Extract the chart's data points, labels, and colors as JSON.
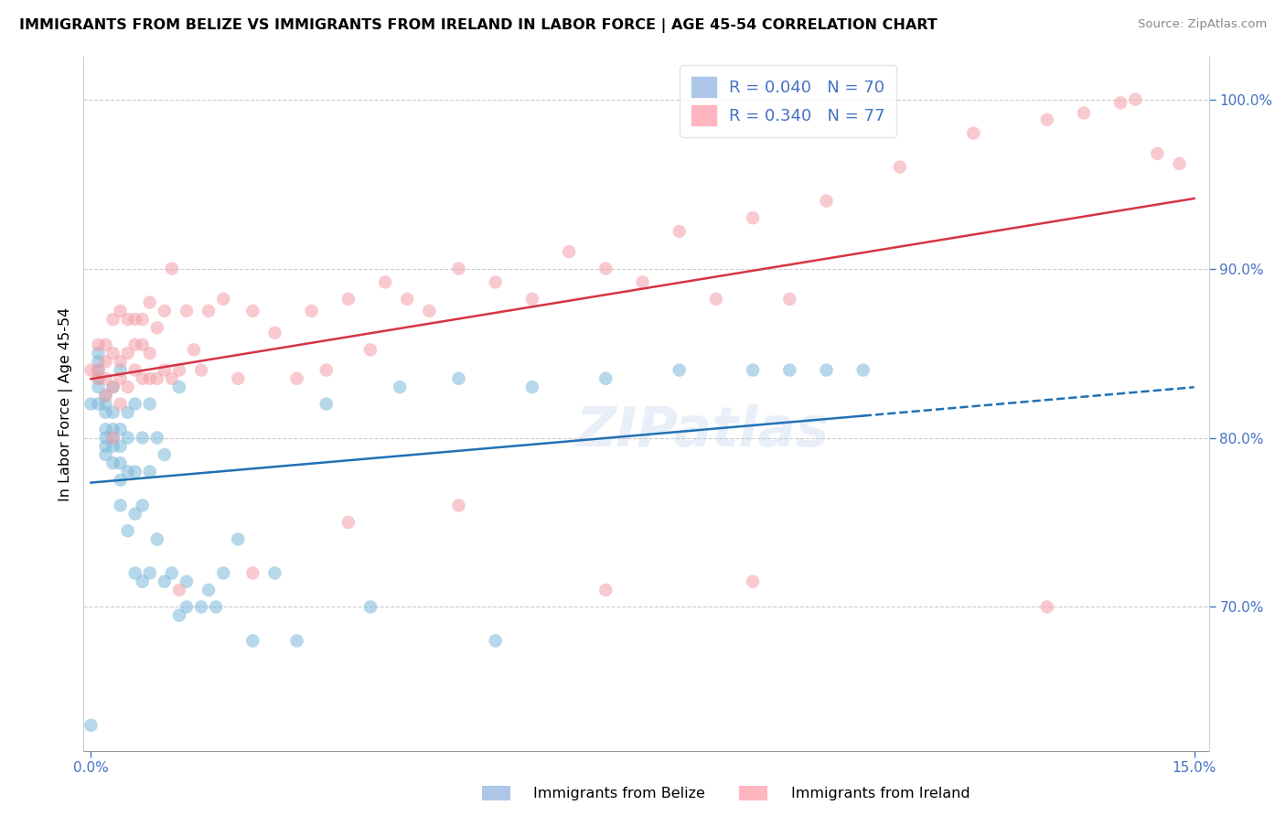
{
  "title": "IMMIGRANTS FROM BELIZE VS IMMIGRANTS FROM IRELAND IN LABOR FORCE | AGE 45-54 CORRELATION CHART",
  "source": "Source: ZipAtlas.com",
  "ylabel": "In Labor Force | Age 45-54",
  "legend_belize_r": "R = 0.040",
  "legend_belize_n": "N = 70",
  "legend_ireland_r": "R = 0.340",
  "legend_ireland_n": "N = 77",
  "belize_color": "#7ab8d9",
  "ireland_color": "#f4a0a8",
  "belize_line_color": "#2171b5",
  "ireland_line_color": "#d63444",
  "watermark": "ZIPatlas",
  "bottom_label_belize": "Immigrants from Belize",
  "bottom_label_ireland": "Immigrants from Ireland",
  "xlim_min": -0.001,
  "xlim_max": 0.152,
  "ylim_min": 0.615,
  "ylim_max": 1.025,
  "belize_x": [
    0.0,
    0.0,
    0.001,
    0.001,
    0.001,
    0.001,
    0.001,
    0.001,
    0.002,
    0.002,
    0.002,
    0.002,
    0.002,
    0.002,
    0.002,
    0.003,
    0.003,
    0.003,
    0.003,
    0.003,
    0.003,
    0.004,
    0.004,
    0.004,
    0.004,
    0.004,
    0.004,
    0.005,
    0.005,
    0.005,
    0.005,
    0.006,
    0.006,
    0.006,
    0.006,
    0.007,
    0.007,
    0.007,
    0.008,
    0.008,
    0.008,
    0.009,
    0.009,
    0.01,
    0.01,
    0.011,
    0.012,
    0.012,
    0.013,
    0.013,
    0.015,
    0.016,
    0.017,
    0.018,
    0.02,
    0.022,
    0.025,
    0.028,
    0.032,
    0.038,
    0.042,
    0.05,
    0.055,
    0.06,
    0.07,
    0.08,
    0.09,
    0.095,
    0.1,
    0.105
  ],
  "belize_y": [
    0.63,
    0.82,
    0.82,
    0.83,
    0.835,
    0.84,
    0.845,
    0.85,
    0.79,
    0.795,
    0.8,
    0.805,
    0.815,
    0.82,
    0.825,
    0.785,
    0.795,
    0.8,
    0.805,
    0.815,
    0.83,
    0.76,
    0.775,
    0.785,
    0.795,
    0.805,
    0.84,
    0.745,
    0.78,
    0.8,
    0.815,
    0.72,
    0.755,
    0.78,
    0.82,
    0.715,
    0.76,
    0.8,
    0.72,
    0.78,
    0.82,
    0.74,
    0.8,
    0.715,
    0.79,
    0.72,
    0.695,
    0.83,
    0.7,
    0.715,
    0.7,
    0.71,
    0.7,
    0.72,
    0.74,
    0.68,
    0.72,
    0.68,
    0.82,
    0.7,
    0.83,
    0.835,
    0.68,
    0.83,
    0.835,
    0.84,
    0.84,
    0.84,
    0.84,
    0.84
  ],
  "ireland_x": [
    0.0,
    0.001,
    0.001,
    0.001,
    0.002,
    0.002,
    0.002,
    0.002,
    0.003,
    0.003,
    0.003,
    0.003,
    0.004,
    0.004,
    0.004,
    0.004,
    0.005,
    0.005,
    0.005,
    0.006,
    0.006,
    0.006,
    0.007,
    0.007,
    0.007,
    0.008,
    0.008,
    0.008,
    0.009,
    0.009,
    0.01,
    0.01,
    0.011,
    0.011,
    0.012,
    0.013,
    0.014,
    0.015,
    0.016,
    0.018,
    0.02,
    0.022,
    0.025,
    0.028,
    0.03,
    0.032,
    0.035,
    0.038,
    0.04,
    0.043,
    0.046,
    0.05,
    0.055,
    0.06,
    0.065,
    0.07,
    0.075,
    0.08,
    0.085,
    0.09,
    0.095,
    0.1,
    0.11,
    0.12,
    0.13,
    0.135,
    0.14,
    0.142,
    0.145,
    0.148,
    0.13,
    0.09,
    0.07,
    0.05,
    0.035,
    0.022,
    0.012
  ],
  "ireland_y": [
    0.84,
    0.835,
    0.84,
    0.855,
    0.825,
    0.835,
    0.845,
    0.855,
    0.8,
    0.83,
    0.85,
    0.87,
    0.82,
    0.835,
    0.845,
    0.875,
    0.83,
    0.85,
    0.87,
    0.84,
    0.855,
    0.87,
    0.835,
    0.855,
    0.87,
    0.835,
    0.85,
    0.88,
    0.835,
    0.865,
    0.84,
    0.875,
    0.835,
    0.9,
    0.84,
    0.875,
    0.852,
    0.84,
    0.875,
    0.882,
    0.835,
    0.875,
    0.862,
    0.835,
    0.875,
    0.84,
    0.882,
    0.852,
    0.892,
    0.882,
    0.875,
    0.9,
    0.892,
    0.882,
    0.91,
    0.9,
    0.892,
    0.922,
    0.882,
    0.93,
    0.882,
    0.94,
    0.96,
    0.98,
    0.988,
    0.992,
    0.998,
    1.0,
    0.968,
    0.962,
    0.7,
    0.715,
    0.71,
    0.76,
    0.75,
    0.72,
    0.71
  ]
}
